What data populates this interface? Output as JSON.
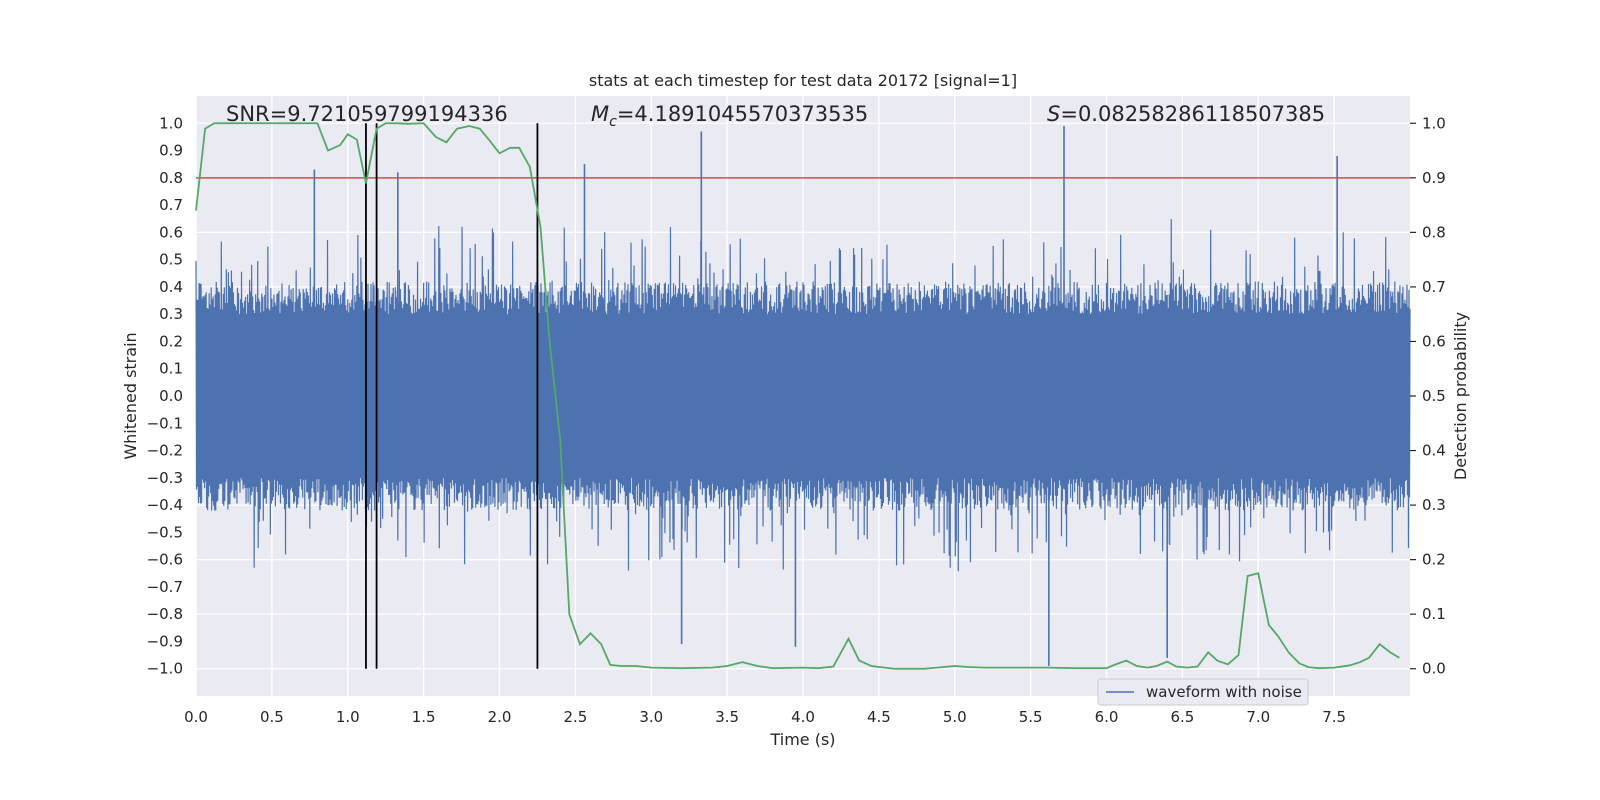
{
  "chart_data": {
    "type": "line",
    "title": "stats at each timestep for test data 20172 [signal=1]",
    "xlabel": "Time (s)",
    "ylabel_left": "Whitened strain",
    "ylabel_right": "Detection probability",
    "xlim": [
      0.0,
      8.0
    ],
    "ylim_left": [
      -1.1,
      1.1
    ],
    "ylim_right": [
      -0.05,
      1.05
    ],
    "x_ticks": [
      "0.0",
      "0.5",
      "1.0",
      "1.5",
      "2.0",
      "2.5",
      "3.0",
      "3.5",
      "4.0",
      "4.5",
      "5.0",
      "5.5",
      "6.0",
      "6.5",
      "7.0",
      "7.5"
    ],
    "y_ticks_left": [
      "1.0",
      "0.9",
      "0.8",
      "0.7",
      "0.6",
      "0.5",
      "0.4",
      "0.3",
      "0.2",
      "0.1",
      "0.0",
      "-0.1",
      "-0.2",
      "-0.3",
      "-0.4",
      "-0.5",
      "-0.6",
      "-0.7",
      "-0.8",
      "-0.9",
      "-1.0"
    ],
    "y_ticks_right": [
      "1.0",
      "0.9",
      "0.8",
      "0.7",
      "0.6",
      "0.5",
      "0.4",
      "0.3",
      "0.2",
      "0.1",
      "0.0"
    ],
    "grid": true,
    "legend_position": "bottom-right",
    "annotations": {
      "snr": "SNR=9.721059799194336",
      "mc_symbol": "M",
      "mc_sub": "c",
      "mc_value": "=4.1891045570373535",
      "s_symbol": "S",
      "s_value": "=0.08258286118507385"
    },
    "series": [
      {
        "name": "waveform with noise",
        "axis": "left",
        "color": "#4c72b0",
        "description_only": false,
        "envelope_peaks": [
          {
            "x": 0.78,
            "y": 0.83
          },
          {
            "x": 1.33,
            "y": 0.82
          },
          {
            "x": 2.56,
            "y": 0.85
          },
          {
            "x": 3.33,
            "y": 0.97
          },
          {
            "x": 5.72,
            "y": 0.99
          },
          {
            "x": 7.52,
            "y": 0.88
          },
          {
            "x": 5.62,
            "y": -0.99
          },
          {
            "x": 6.4,
            "y": -0.96
          },
          {
            "x": 3.2,
            "y": -0.91
          },
          {
            "x": 3.95,
            "y": -0.92
          }
        ]
      },
      {
        "axis": "right",
        "color": "#55a868",
        "x": [
          0.0,
          0.06,
          0.12,
          0.2,
          0.3,
          0.4,
          0.5,
          0.6,
          0.7,
          0.8,
          0.87,
          0.95,
          1.0,
          1.06,
          1.12,
          1.19,
          1.25,
          1.32,
          1.4,
          1.5,
          1.58,
          1.65,
          1.72,
          1.8,
          1.87,
          1.93,
          2.0,
          2.07,
          2.13,
          2.2,
          2.27,
          2.33,
          2.4,
          2.46,
          2.53,
          2.6,
          2.67,
          2.73,
          2.8,
          2.9,
          3.0,
          3.2,
          3.4,
          3.5,
          3.6,
          3.7,
          3.8,
          4.0,
          4.1,
          4.2,
          4.3,
          4.37,
          4.45,
          4.6,
          4.8,
          5.0,
          5.1,
          5.2,
          5.4,
          5.6,
          5.8,
          6.0,
          6.06,
          6.13,
          6.2,
          6.27,
          6.33,
          6.4,
          6.46,
          6.53,
          6.6,
          6.67,
          6.73,
          6.8,
          6.87,
          6.93,
          7.0,
          7.07,
          7.13,
          7.2,
          7.27,
          7.33,
          7.4,
          7.5,
          7.6,
          7.67,
          7.73,
          7.8,
          7.87,
          7.93
        ],
        "values": [
          0.84,
          0.99,
          1.0,
          1.0,
          1.0,
          1.0,
          1.0,
          1.0,
          1.0,
          1.0,
          0.95,
          0.96,
          0.98,
          0.97,
          0.89,
          0.99,
          1.0,
          1.0,
          0.999,
          1.0,
          0.975,
          0.965,
          0.99,
          0.995,
          0.99,
          0.97,
          0.945,
          0.955,
          0.955,
          0.92,
          0.81,
          0.6,
          0.42,
          0.1,
          0.045,
          0.065,
          0.045,
          0.007,
          0.005,
          0.005,
          0.002,
          0.001,
          0.002,
          0.005,
          0.012,
          0.005,
          0.001,
          0.002,
          0.001,
          0.004,
          0.055,
          0.015,
          0.005,
          0.0,
          0.0,
          0.005,
          0.003,
          0.002,
          0.002,
          0.002,
          0.001,
          0.001,
          0.008,
          0.015,
          0.005,
          0.002,
          0.005,
          0.013,
          0.004,
          0.002,
          0.004,
          0.03,
          0.015,
          0.008,
          0.025,
          0.17,
          0.175,
          0.08,
          0.06,
          0.03,
          0.01,
          0.003,
          0.001,
          0.002,
          0.006,
          0.012,
          0.02,
          0.045,
          0.03,
          0.02
        ]
      }
    ],
    "threshold_line": {
      "axis": "right",
      "value": 0.9,
      "color": "#c44e52"
    },
    "vertical_lines": {
      "x": [
        1.12,
        1.19,
        2.25
      ],
      "color": "#000000",
      "y_top": 1.0,
      "y_bottom": -1.0
    }
  }
}
